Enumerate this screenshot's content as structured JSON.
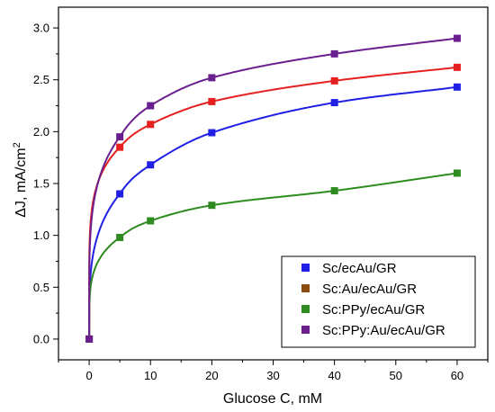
{
  "chart_data": {
    "type": "scatter",
    "title": "",
    "xlabel": "Glucose C, mM",
    "ylabel_main": "ΔJ, mA/cm",
    "ylabel_sup": "2",
    "xlim": [
      -5,
      65
    ],
    "ylim": [
      -0.2,
      3.2
    ],
    "x_ticks": [
      0,
      10,
      20,
      30,
      40,
      50,
      60
    ],
    "x_tick_labels": [
      "0",
      "10",
      "20",
      "30",
      "40",
      "50",
      "60"
    ],
    "y_ticks": [
      0.0,
      0.5,
      1.0,
      1.5,
      2.0,
      2.5,
      3.0
    ],
    "y_tick_labels": [
      "0.0",
      "0.5",
      "1.0",
      "1.5",
      "2.0",
      "2.5",
      "3.0"
    ],
    "grid": false,
    "legend_position": "bottom-right",
    "x": [
      0,
      5,
      10,
      20,
      40,
      60
    ],
    "series": [
      {
        "name": "Sc/ecAu/GR",
        "color": "#1f1fe6",
        "values": [
          0.0,
          1.4,
          1.68,
          1.99,
          2.28,
          2.43
        ]
      },
      {
        "name": "Sc:Au/ecAu/GR",
        "color": "#e61f1f",
        "values": [
          0.0,
          1.85,
          2.07,
          2.29,
          2.49,
          2.62
        ]
      },
      {
        "name": "Sc:PPy/ecAu/GR",
        "color": "#2e8b1f",
        "values": [
          0.0,
          0.98,
          1.14,
          1.29,
          1.43,
          1.6
        ]
      },
      {
        "name": "Sc:PPy:Au/ecAu/GR",
        "color": "#6a1f8f",
        "values": [
          0.0,
          1.95,
          2.25,
          2.52,
          2.75,
          2.9
        ]
      }
    ],
    "fit_curves": "smooth fitted line through each series (same color)",
    "legend_marker_colors": [
      "#1f1fe6",
      "#8a4a10",
      "#2e8b1f",
      "#6a1f8f"
    ]
  }
}
